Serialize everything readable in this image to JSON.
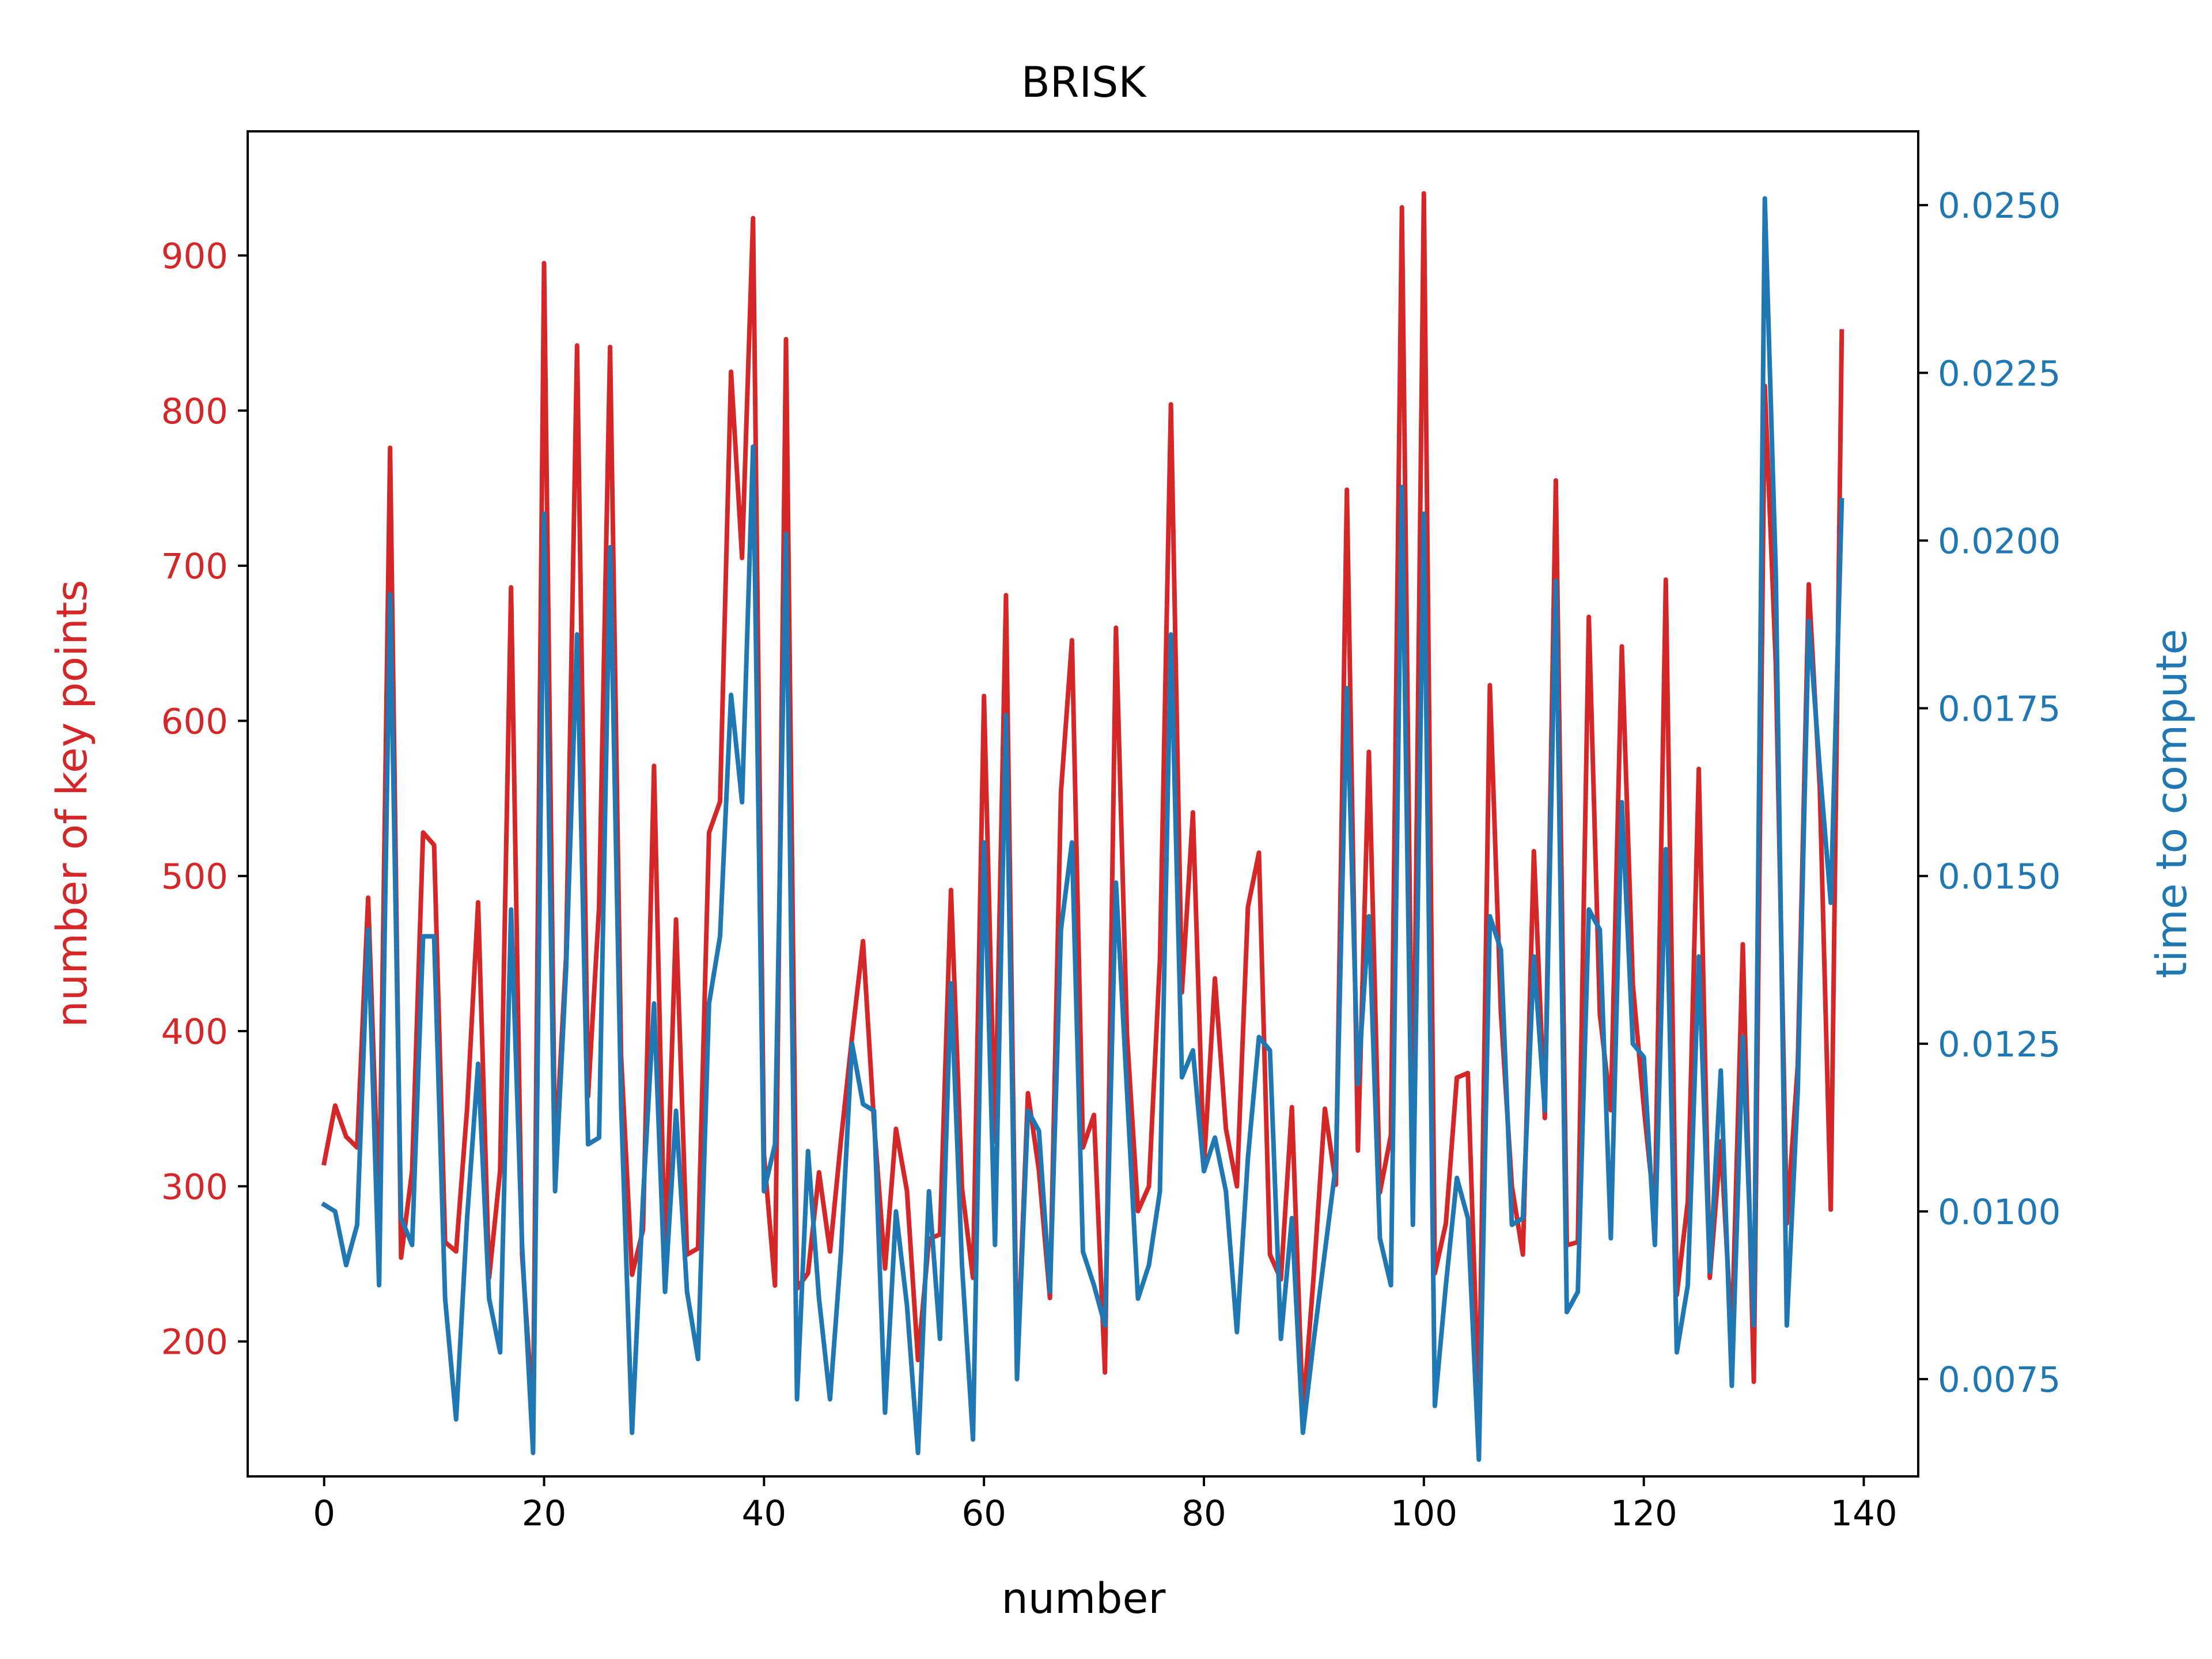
{
  "chart_data": {
    "type": "line",
    "title": "BRISK",
    "xlabel": "number",
    "ylabel_left": "number of key points",
    "ylabel_right": "time to compute",
    "xlim": [
      -6.95,
      144.95
    ],
    "ylim_left": [
      113,
      980
    ],
    "ylim_right": [
      0.00605,
      0.0261
    ],
    "x_ticks": [
      0,
      20,
      40,
      60,
      80,
      100,
      120,
      140
    ],
    "y_left_ticks": [
      200,
      300,
      400,
      500,
      600,
      700,
      800,
      900
    ],
    "y_right_ticks": [
      "0.0075",
      "0.0100",
      "0.0125",
      "0.0150",
      "0.0175",
      "0.0200",
      "0.0225",
      "0.0250"
    ],
    "grid": false,
    "colors": {
      "left": "#d62728",
      "right": "#1f77b4",
      "text": "#000000"
    },
    "series": [
      {
        "axis": "left",
        "color": "#d62728",
        "values": [
          315,
          352,
          332,
          325,
          486,
          280,
          776,
          254,
          310,
          528,
          520,
          264,
          258,
          350,
          483,
          241,
          310,
          686,
          256,
          152,
          895,
          316,
          448,
          842,
          358,
          480,
          841,
          384,
          243,
          272,
          571,
          249,
          472,
          256,
          260,
          528,
          548,
          825,
          705,
          924,
          320,
          236,
          846,
          234,
          244,
          309,
          258,
          330,
          396,
          458,
          341,
          247,
          337,
          297,
          188,
          266,
          269,
          491,
          299,
          241,
          616,
          329,
          681,
          182,
          360,
          310,
          228,
          554,
          652,
          325,
          346,
          180,
          660,
          398,
          284,
          300,
          446,
          804,
          425,
          541,
          313,
          434,
          337,
          300,
          480,
          515,
          256,
          240,
          351,
          153,
          244,
          350,
          301,
          749,
          323,
          580,
          296,
          333,
          931,
          313,
          940,
          244,
          276,
          370,
          373,
          153,
          623,
          412,
          300,
          256,
          516,
          344,
          755,
          262,
          264,
          667,
          411,
          349,
          648,
          430,
          351,
          281,
          691,
          230,
          290,
          569,
          241,
          329,
          202,
          456,
          174,
          816,
          636,
          276,
          378,
          688,
          557,
          285,
          851
        ]
      },
      {
        "axis": "right",
        "color": "#1f77b4",
        "values": [
          0.0101,
          0.01,
          0.0092,
          0.0098,
          0.0142,
          0.0089,
          0.0192,
          0.0099,
          0.0095,
          0.0141,
          0.0141,
          0.0087,
          0.0069,
          0.0099,
          0.0122,
          0.0087,
          0.0079,
          0.0145,
          0.0095,
          0.0064,
          0.0204,
          0.0103,
          0.0136,
          0.0186,
          0.011,
          0.0111,
          0.0199,
          0.0116,
          0.0067,
          0.0102,
          0.0131,
          0.0088,
          0.0115,
          0.0088,
          0.0078,
          0.0131,
          0.0141,
          0.0177,
          0.0161,
          0.0214,
          0.0103,
          0.011,
          0.0201,
          0.0072,
          0.0109,
          0.0087,
          0.0072,
          0.0094,
          0.0125,
          0.0116,
          0.0115,
          0.007,
          0.01,
          0.0086,
          0.0064,
          0.0103,
          0.0081,
          0.0134,
          0.0092,
          0.0066,
          0.0155,
          0.0095,
          0.0174,
          0.0075,
          0.0115,
          0.0112,
          0.0088,
          0.0142,
          0.0155,
          0.0094,
          0.0089,
          0.0083,
          0.0149,
          0.0118,
          0.0087,
          0.0092,
          0.0103,
          0.0186,
          0.012,
          0.0124,
          0.0106,
          0.0111,
          0.0103,
          0.0082,
          0.0108,
          0.0126,
          0.0124,
          0.0081,
          0.0099,
          0.0067,
          0.0081,
          0.0094,
          0.0107,
          0.0178,
          0.0119,
          0.0144,
          0.0096,
          0.0089,
          0.0208,
          0.0098,
          0.0204,
          0.0071,
          0.0089,
          0.0105,
          0.0099,
          0.0063,
          0.0144,
          0.0139,
          0.0098,
          0.0099,
          0.0138,
          0.0115,
          0.0194,
          0.0085,
          0.0088,
          0.0145,
          0.0142,
          0.0096,
          0.0161,
          0.0125,
          0.0123,
          0.0095,
          0.0154,
          0.0079,
          0.0089,
          0.0138,
          0.0091,
          0.0121,
          0.0074,
          0.0126,
          0.0083,
          0.0251,
          0.0195,
          0.0083,
          0.0118,
          0.0188,
          0.0166,
          0.0146,
          0.0206
        ]
      }
    ]
  }
}
